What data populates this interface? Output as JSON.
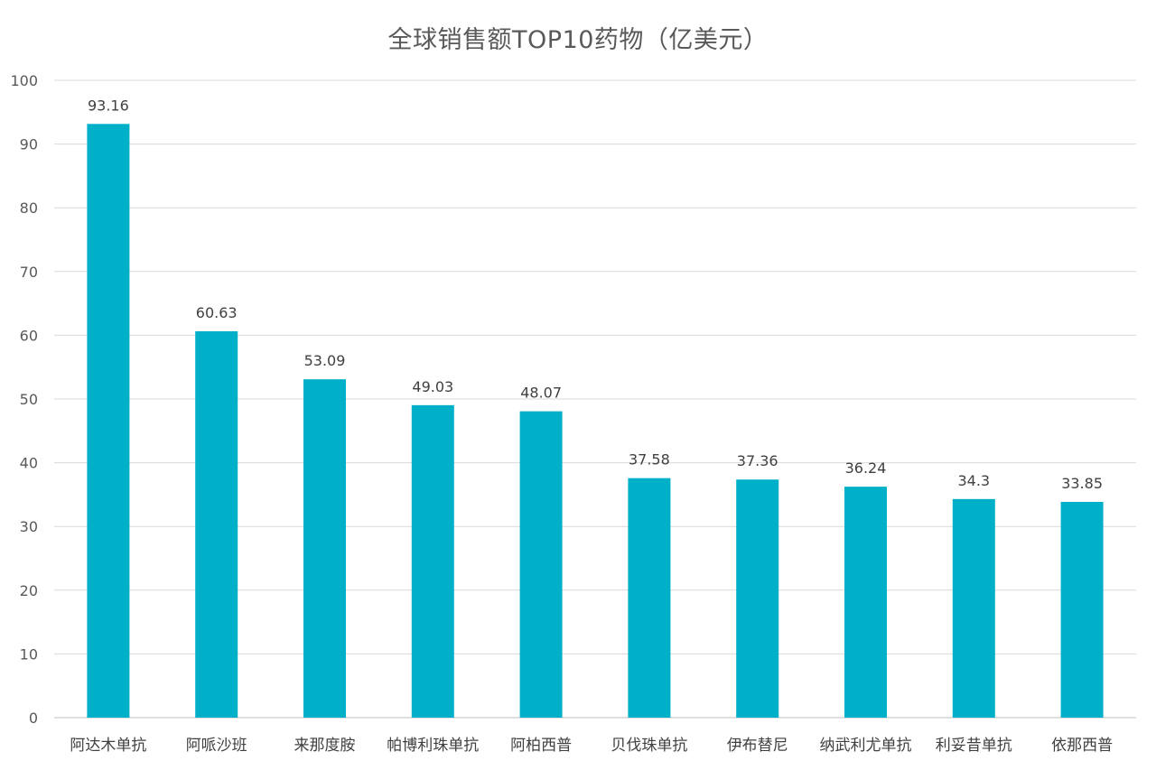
{
  "chart_data": {
    "type": "bar",
    "title": "全球销售额TOP10药物（亿美元）",
    "xlabel": "",
    "ylabel": "",
    "categories": [
      "阿达木单抗",
      "阿哌沙班",
      "来那度胺",
      "帕博利珠单抗",
      "阿柏西普",
      "贝伐珠单抗",
      "伊布替尼",
      "纳武利尤单抗",
      "利妥昔单抗",
      "依那西普"
    ],
    "values": [
      93.16,
      60.63,
      53.09,
      49.03,
      48.07,
      37.58,
      37.36,
      36.24,
      34.3,
      33.85
    ],
    "value_labels": [
      "93.16",
      "60.63",
      "53.09",
      "49.03",
      "48.07",
      "37.58",
      "37.36",
      "36.24",
      "34.3",
      "33.85"
    ],
    "ylim": [
      0,
      100
    ],
    "yticks": [
      0,
      10,
      20,
      30,
      40,
      50,
      60,
      70,
      80,
      90,
      100
    ],
    "grid": true,
    "legend": "none",
    "bar_color": "#00b0c8"
  }
}
